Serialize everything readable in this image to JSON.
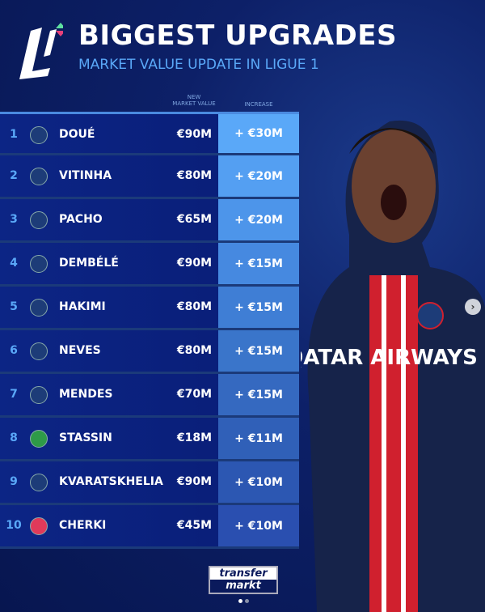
{
  "header": {
    "title": "BIGGEST UPGRADES",
    "subtitle": "MARKET VALUE UPDATE IN LIGUE 1",
    "logo": "ligue-1-logo"
  },
  "columns": {
    "new_market_value": "NEW\nMARKET VALUE",
    "increase": "INCREASE"
  },
  "rows": [
    {
      "rank": "1",
      "club": "PSG",
      "name": "DOUÉ",
      "value": "€90M",
      "increase": "+ €30M"
    },
    {
      "rank": "2",
      "club": "PSG",
      "name": "VITINHA",
      "value": "€80M",
      "increase": "+ €20M"
    },
    {
      "rank": "3",
      "club": "PSG",
      "name": "PACHO",
      "value": "€65M",
      "increase": "+ €20M"
    },
    {
      "rank": "4",
      "club": "PSG",
      "name": "DEMBÉLÉ",
      "value": "€90M",
      "increase": "+ €15M"
    },
    {
      "rank": "5",
      "club": "PSG",
      "name": "HAKIMI",
      "value": "€80M",
      "increase": "+ €15M"
    },
    {
      "rank": "6",
      "club": "PSG",
      "name": "NEVES",
      "value": "€80M",
      "increase": "+ €15M"
    },
    {
      "rank": "7",
      "club": "PSG",
      "name": "MENDES",
      "value": "€70M",
      "increase": "+ €15M"
    },
    {
      "rank": "8",
      "club": "Saint-Étienne",
      "name": "STASSIN",
      "value": "€18M",
      "increase": "+ €11M"
    },
    {
      "rank": "9",
      "club": "PSG",
      "name": "KVARATSKHELIA",
      "value": "€90M",
      "increase": "+ €10M"
    },
    {
      "rank": "10",
      "club": "Lyon",
      "name": "CHERKI",
      "value": "€45M",
      "increase": "+ €10M"
    }
  ],
  "photo": {
    "sponsor": "QATAR AIRWAYS"
  },
  "footer": {
    "brand_top": "transfer",
    "brand_bottom": "markt"
  },
  "carousel": {
    "current": 1,
    "total": 2
  },
  "colors": {
    "accent": "#5aa8f8",
    "background": "#0a1a5c",
    "psg": "#1d3c78",
    "saint_etienne": "#2e9a48",
    "lyon": "#e03a5a"
  }
}
